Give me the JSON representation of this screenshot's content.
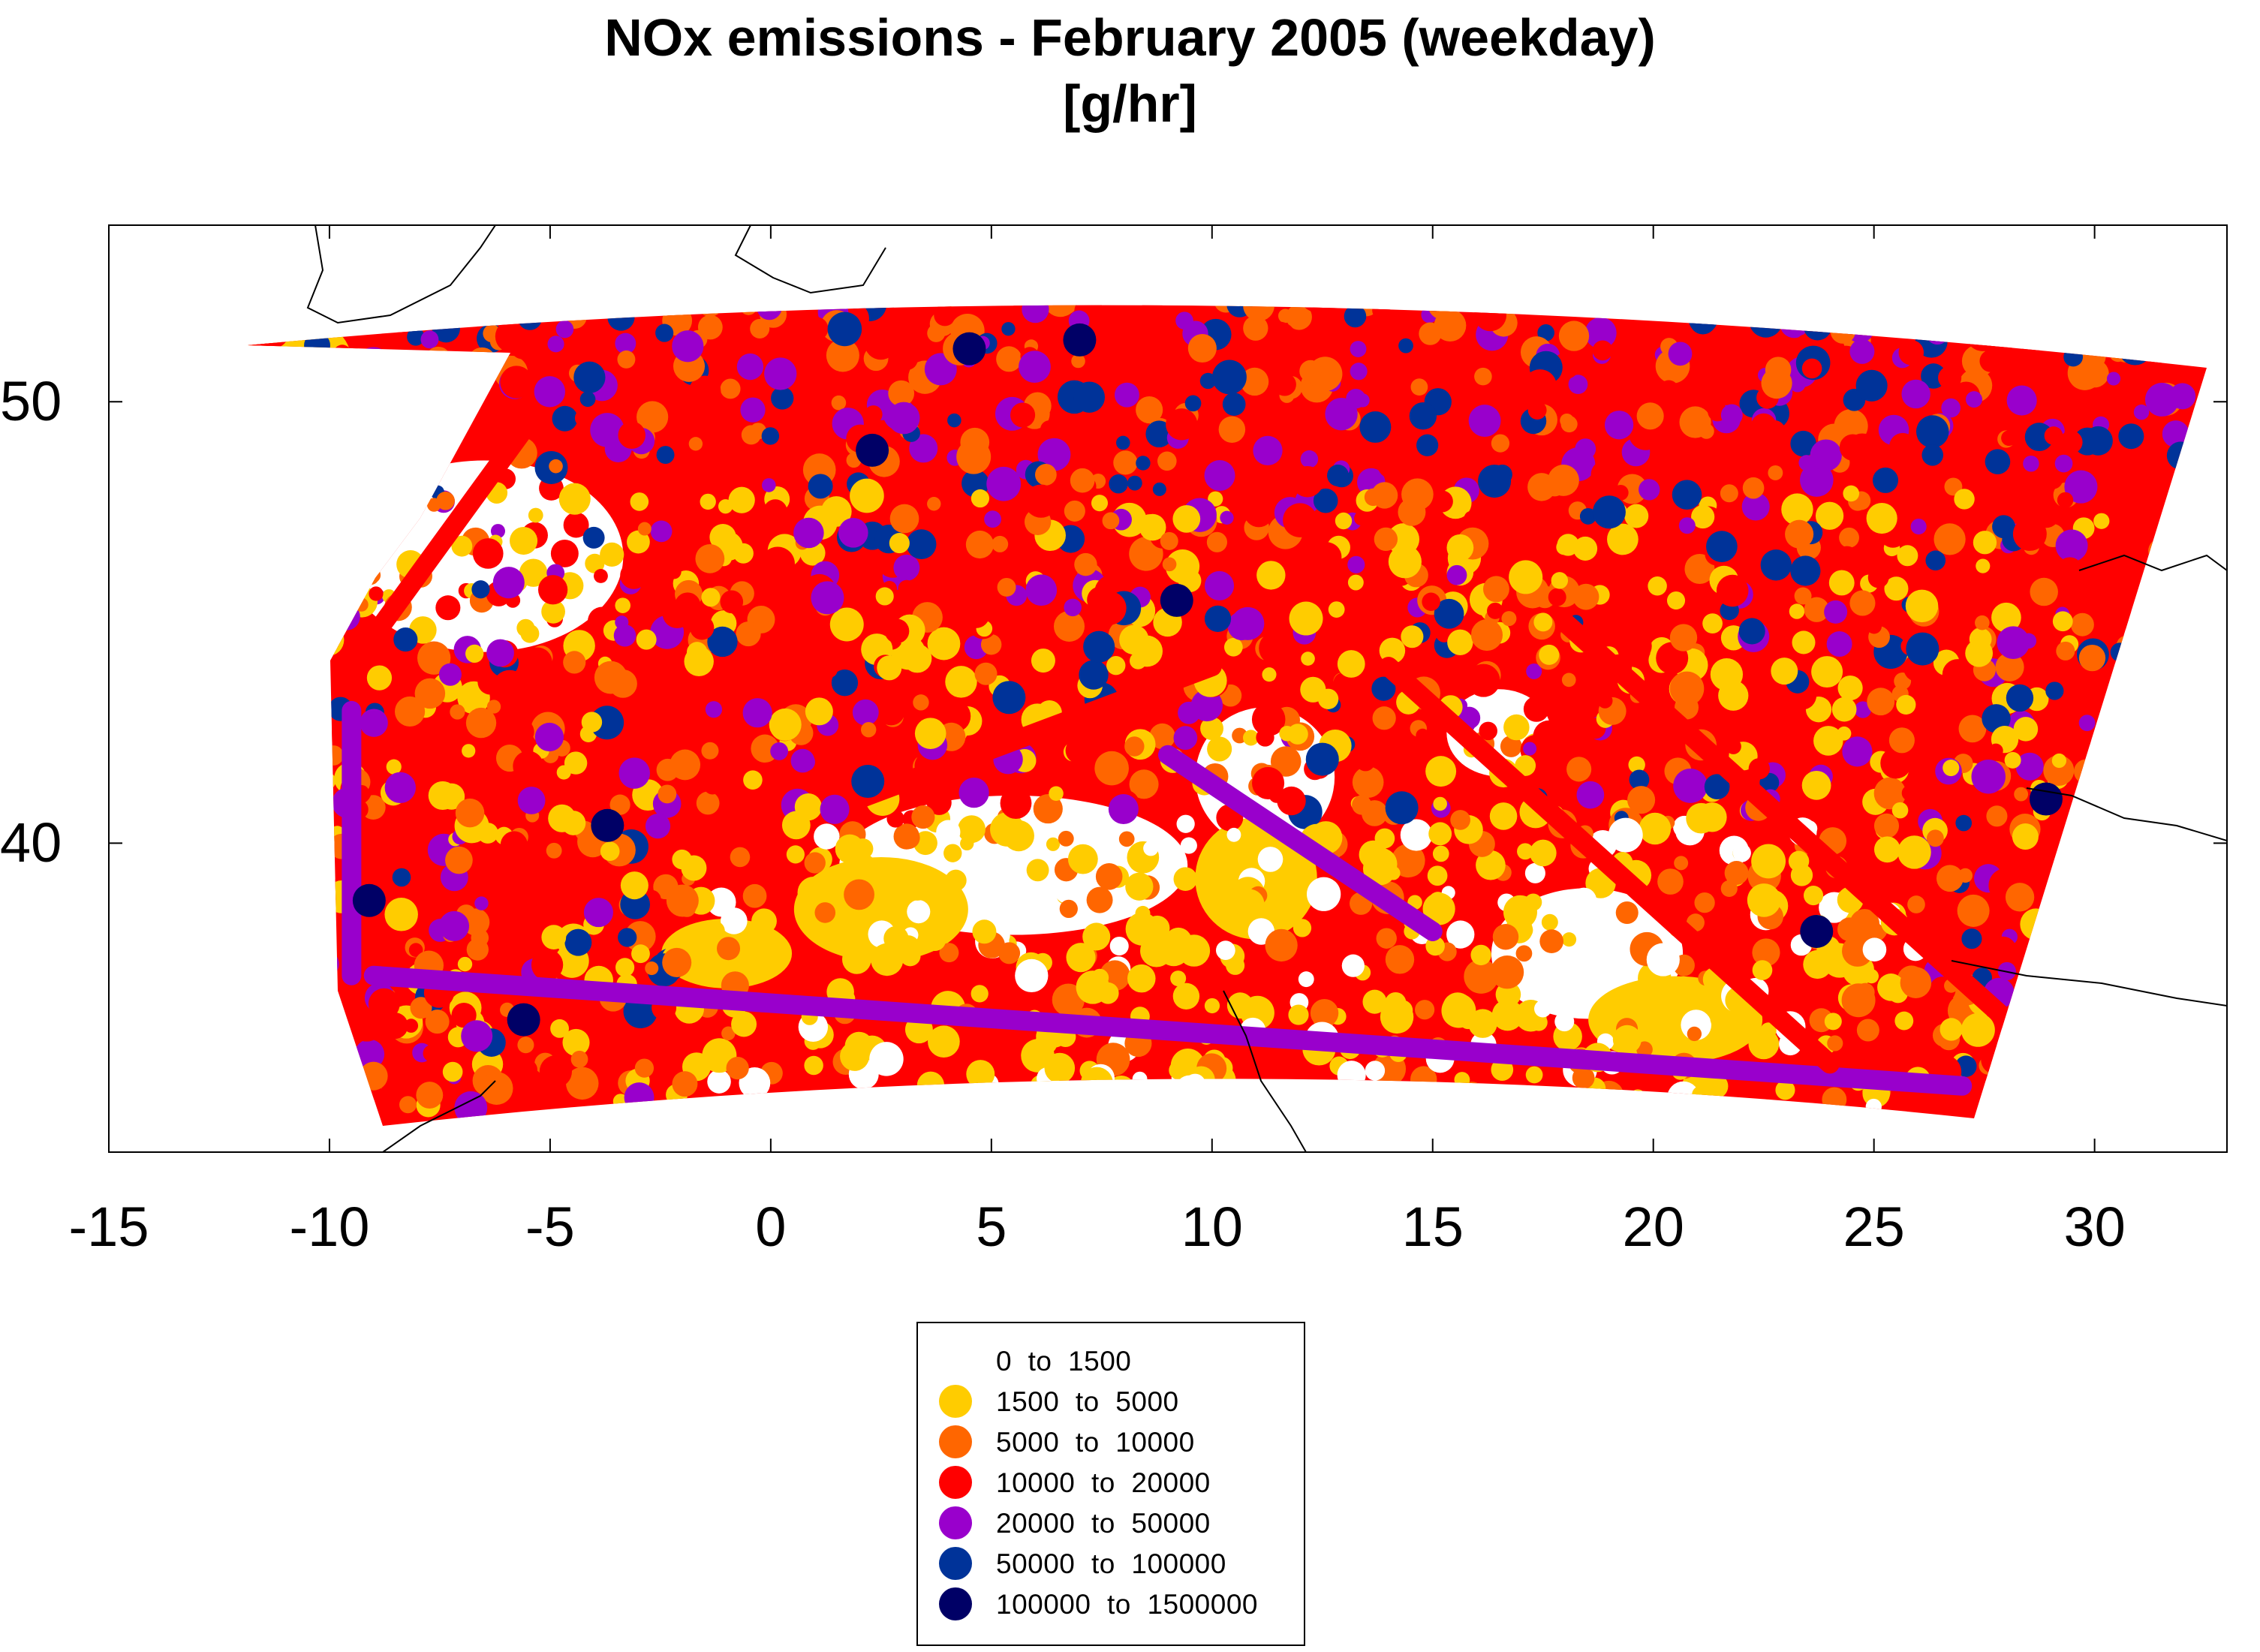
{
  "title": {
    "line1": "NOx emissions - February 2005 (weekday)",
    "line2": "[g/hr]"
  },
  "axes": {
    "x_ticks": [
      "-15",
      "-10",
      "-5",
      "0",
      "5",
      "10",
      "15",
      "20",
      "25",
      "30"
    ],
    "y_ticks": [
      "50",
      "40"
    ]
  },
  "legend": {
    "items": [
      {
        "label": "0  to  1500",
        "color": "#ffffff"
      },
      {
        "label": "1500  to  5000",
        "color": "#ffcc00"
      },
      {
        "label": "5000  to  10000",
        "color": "#ff6600"
      },
      {
        "label": "10000  to  20000",
        "color": "#ff0000"
      },
      {
        "label": "20000  to  50000",
        "color": "#9900cc"
      },
      {
        "label": "50000  to  100000",
        "color": "#003399"
      },
      {
        "label": "100000  to  1500000",
        "color": "#000066"
      }
    ]
  },
  "chart_data": {
    "type": "heatmap",
    "title": "NOx emissions - February 2005 (weekday)",
    "units": "[g/hr]",
    "xlim": [
      -15,
      33
    ],
    "ylim": [
      33,
      54
    ],
    "x_ticks": [
      -15,
      -10,
      -5,
      0,
      5,
      10,
      15,
      20,
      25,
      30
    ],
    "y_ticks": [
      40,
      50
    ],
    "grid": false,
    "legend_position": "bottom-center",
    "bins": [
      {
        "min": 0,
        "max": 1500,
        "color": "#ffffff"
      },
      {
        "min": 1500,
        "max": 5000,
        "color": "#ffcc00"
      },
      {
        "min": 5000,
        "max": 10000,
        "color": "#ff6600"
      },
      {
        "min": 10000,
        "max": 20000,
        "color": "#ff0000"
      },
      {
        "min": 20000,
        "max": 50000,
        "color": "#9900cc"
      },
      {
        "min": 50000,
        "max": 100000,
        "color": "#003399"
      },
      {
        "min": 100000,
        "max": 1500000,
        "color": "#000066"
      }
    ],
    "domain_note_free": true,
    "hotspots": [
      {
        "lon": 4.5,
        "lat": 51.2,
        "bin": 6
      },
      {
        "lon": 2.3,
        "lat": 48.9,
        "bin": 6
      },
      {
        "lon": 7.0,
        "lat": 51.4,
        "bin": 6
      },
      {
        "lon": 9.2,
        "lat": 45.5,
        "bin": 6
      },
      {
        "lon": -3.7,
        "lat": 40.4,
        "bin": 6
      },
      {
        "lon": 2.2,
        "lat": 41.4,
        "bin": 5
      },
      {
        "lon": 5.4,
        "lat": 43.3,
        "bin": 5
      },
      {
        "lon": 12.5,
        "lat": 41.9,
        "bin": 5
      },
      {
        "lon": 14.3,
        "lat": 40.8,
        "bin": 5
      },
      {
        "lon": 23.7,
        "lat": 38.0,
        "bin": 6
      },
      {
        "lon": 28.9,
        "lat": 41.0,
        "bin": 6
      },
      {
        "lon": 13.4,
        "lat": 52.5,
        "bin": 5
      },
      {
        "lon": 21.0,
        "lat": 52.2,
        "bin": 5
      },
      {
        "lon": 16.4,
        "lat": 48.2,
        "bin": 5
      },
      {
        "lon": 19.0,
        "lat": 47.5,
        "bin": 5
      },
      {
        "lon": 26.1,
        "lat": 44.4,
        "bin": 5
      },
      {
        "lon": -9.1,
        "lat": 38.7,
        "bin": 6
      },
      {
        "lon": -5.6,
        "lat": 36.0,
        "bin": 6
      }
    ],
    "shipping_lanes": [
      {
        "from": [
          -9.5,
          44
        ],
        "to": [
          -5.5,
          49.5
        ],
        "bin": 3
      },
      {
        "from": [
          -9.5,
          43
        ],
        "to": [
          -9.5,
          37
        ],
        "bin": 4
      },
      {
        "from": [
          -9,
          37
        ],
        "to": [
          27,
          34.5
        ],
        "bin": 4
      },
      {
        "from": [
          2,
          41
        ],
        "to": [
          10,
          44
        ],
        "bin": 3
      },
      {
        "from": [
          14,
          44
        ],
        "to": [
          24,
          35
        ],
        "bin": 3
      },
      {
        "from": [
          18,
          45
        ],
        "to": [
          28,
          36
        ],
        "bin": 3
      },
      {
        "from": [
          9,
          42
        ],
        "to": [
          15,
          38
        ],
        "bin": 4
      }
    ]
  }
}
